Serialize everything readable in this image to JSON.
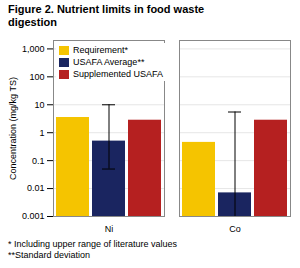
{
  "chart_data": {
    "type": "bar",
    "title": "Figure 2. Nutrient limits in food waste\ndigestion",
    "ylabel": "Concentration (mg/kg TS)",
    "categories": [
      "Ni",
      "Co"
    ],
    "series": [
      {
        "name": "Requirement*",
        "color": "#F5C400",
        "values": [
          3.5,
          0.45
        ]
      },
      {
        "name": "USAFA Average**",
        "color": "#1a2560",
        "values": [
          0.5,
          0.007
        ],
        "yerr_low": [
          0.45,
          0.006
        ],
        "yerr_high": [
          9.5,
          5.5
        ]
      },
      {
        "name": "Supplemented USAFA",
        "color": "#B52020",
        "values": [
          2.8,
          2.8
        ]
      }
    ],
    "log": "y",
    "ylim": [
      0.001,
      2000
    ],
    "yticks": [
      0.001,
      0.01,
      0.1,
      1,
      10,
      100,
      {
        "value": 1000,
        "label": "1,000"
      }
    ],
    "grid": true,
    "legend": "upper left",
    "annotations": [
      "* Including upper range of literature values",
      "**Standard deviation"
    ]
  }
}
